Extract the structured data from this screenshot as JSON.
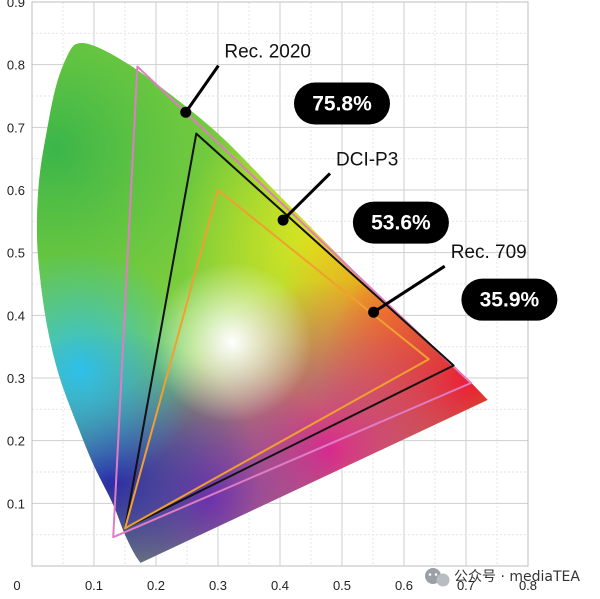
{
  "axes": {
    "x_ticks": [
      "0",
      "0.1",
      "0.2",
      "0.3",
      "0.4",
      "0.5",
      "0.6",
      "0.7",
      "0.8"
    ],
    "y_ticks": [
      "0.1",
      "0.2",
      "0.3",
      "0.4",
      "0.5",
      "0.6",
      "0.7",
      "0.8",
      "0.9"
    ],
    "xlim": [
      0,
      0.8
    ],
    "ylim": [
      0,
      0.9
    ],
    "grid": true
  },
  "locus": [
    [
      0.175,
      0.005
    ],
    [
      0.165,
      0.02
    ],
    [
      0.15,
      0.05
    ],
    [
      0.13,
      0.1
    ],
    [
      0.1,
      0.16
    ],
    [
      0.075,
      0.22
    ],
    [
      0.045,
      0.3
    ],
    [
      0.025,
      0.38
    ],
    [
      0.012,
      0.47
    ],
    [
      0.008,
      0.54
    ],
    [
      0.012,
      0.62
    ],
    [
      0.025,
      0.7
    ],
    [
      0.04,
      0.77
    ],
    [
      0.06,
      0.82
    ],
    [
      0.075,
      0.834
    ],
    [
      0.1,
      0.83
    ],
    [
      0.14,
      0.81
    ],
    [
      0.2,
      0.77
    ],
    [
      0.3,
      0.69
    ],
    [
      0.4,
      0.59
    ],
    [
      0.5,
      0.49
    ],
    [
      0.6,
      0.39
    ],
    [
      0.68,
      0.32
    ],
    [
      0.735,
      0.265
    ]
  ],
  "gamuts": [
    {
      "label": "Rec. 2020",
      "coverage": "75.8%",
      "color": "#e07cc4",
      "points": [
        [
          0.708,
          0.292
        ],
        [
          0.17,
          0.797
        ],
        [
          0.131,
          0.046
        ]
      ],
      "marker": [
        0.248,
        0.724
      ],
      "label_pos": [
        0.32,
        0.808
      ],
      "pill_pos": [
        0.5,
        0.738
      ]
    },
    {
      "label": "DCI-P3",
      "coverage": "53.6%",
      "color": "#111111",
      "points": [
        [
          0.68,
          0.32
        ],
        [
          0.265,
          0.69
        ],
        [
          0.15,
          0.06
        ]
      ],
      "marker": [
        0.405,
        0.552
      ],
      "label_pos": [
        0.5,
        0.636
      ],
      "pill_pos": [
        0.595,
        0.548
      ]
    },
    {
      "label": "Rec. 709",
      "coverage": "35.9%",
      "color": "#f0a030",
      "points": [
        [
          0.64,
          0.33
        ],
        [
          0.3,
          0.6
        ],
        [
          0.15,
          0.06
        ]
      ],
      "marker": [
        0.551,
        0.405
      ],
      "label_pos": [
        0.685,
        0.488
      ],
      "pill_pos": [
        0.77,
        0.425
      ]
    }
  ],
  "watermark": {
    "icon": "wechat-icon",
    "text": "公众号 · mediaTEA"
  }
}
